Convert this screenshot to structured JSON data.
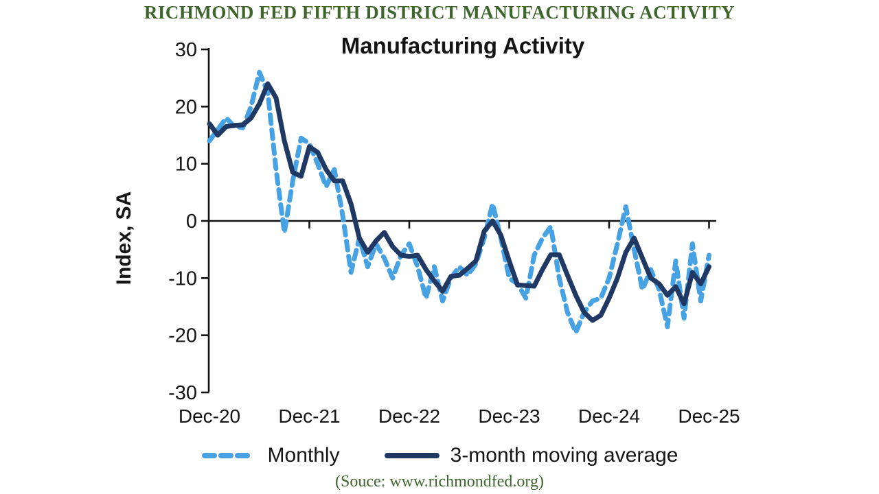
{
  "header": {
    "title": "RICHMOND FED FIFTH DISTRICT MANUFACTURING ACTIVITY",
    "color": "#3E652C"
  },
  "chart": {
    "title": "Manufacturing Activity",
    "y_axis_label": "Index, SA",
    "source": "(Souce: www.richmondfed.org)"
  },
  "legend": [
    {
      "label": "Monthly",
      "style": "dashed",
      "color": "#46A2E3"
    },
    {
      "label": "3-month moving average",
      "style": "solid",
      "color": "#1F3864"
    }
  ],
  "chart_data": {
    "type": "line",
    "title": "Manufacturing Activity",
    "xlabel": "",
    "ylabel": "Index, SA",
    "ylim": [
      -30,
      30
    ],
    "y_ticks": [
      30,
      20,
      10,
      0,
      -10,
      -20,
      -30
    ],
    "x_tick_labels": [
      "Dec-20",
      "Dec-21",
      "Dec-22",
      "Dec-23",
      "Dec-24",
      "Dec-25"
    ],
    "grid": false,
    "legend_position": "bottom",
    "axis_color": "#111111",
    "x": [
      "Dec-20",
      "Jan-21",
      "Feb-21",
      "Mar-21",
      "Apr-21",
      "May-21",
      "Jun-21",
      "Jul-21",
      "Aug-21",
      "Sep-21",
      "Oct-21",
      "Nov-21",
      "Dec-21",
      "Jan-22",
      "Feb-22",
      "Mar-22",
      "Apr-22",
      "May-22",
      "Jun-22",
      "Jul-22",
      "Aug-22",
      "Sep-22",
      "Oct-22",
      "Nov-22",
      "Dec-22",
      "Jan-23",
      "Feb-23",
      "Mar-23",
      "Apr-23",
      "May-23",
      "Jun-23",
      "Jul-23",
      "Aug-23",
      "Sep-23",
      "Oct-23",
      "Nov-23",
      "Dec-23",
      "Jan-24",
      "Feb-24",
      "Mar-24",
      "Apr-24",
      "May-24",
      "Jun-24",
      "Jul-24",
      "Aug-24",
      "Sep-24",
      "Oct-24",
      "Nov-24",
      "Dec-24",
      "Jan-25",
      "Feb-25",
      "Mar-25",
      "Apr-25",
      "May-25",
      "Jun-25",
      "Jul-25",
      "Aug-25",
      "Sep-25",
      "Oct-25",
      "Nov-25",
      "Dec-25"
    ],
    "series": [
      {
        "name": "Monthly",
        "color": "#46A2E3",
        "dash": true,
        "values": [
          14,
          16,
          18,
          16.5,
          16.3,
          20,
          26,
          22.5,
          9,
          -2,
          7,
          14.5,
          13.5,
          10,
          6,
          9,
          1,
          -9,
          -3,
          -8,
          -4,
          -6.5,
          -10,
          -6,
          -4,
          -8,
          -13.5,
          -8,
          -14,
          -10,
          -8,
          -9.5,
          -7.5,
          -3,
          3,
          -3,
          -10,
          -11,
          -13.5,
          -6,
          -3,
          -1,
          -10,
          -16,
          -19.5,
          -16,
          -14,
          -13.5,
          -10,
          -4,
          2.5,
          -5,
          -12,
          -8.5,
          -12,
          -18.5,
          -7,
          -17,
          -4,
          -14,
          -6
        ]
      },
      {
        "name": "3-month moving average",
        "color": "#1F3864",
        "dash": false,
        "values": [
          17,
          15,
          16.5,
          16.7,
          16.8,
          18,
          20.5,
          24,
          21.5,
          14,
          8.5,
          7.8,
          13,
          12,
          9,
          7,
          7,
          3,
          -3,
          -5.5,
          -3.5,
          -2,
          -4.5,
          -6,
          -6.2,
          -6,
          -8.5,
          -10.5,
          -12.3,
          -9.7,
          -9.5,
          -8.3,
          -7,
          -1.8,
          0,
          -2.5,
          -7,
          -11.2,
          -11.3,
          -11.4,
          -8.5,
          -5.9,
          -5.9,
          -9.5,
          -13,
          -16,
          -17.4,
          -16.5,
          -13.5,
          -10,
          -5.5,
          -3,
          -6.5,
          -10,
          -11,
          -13,
          -11.5,
          -14.5,
          -9,
          -11,
          -8
        ]
      }
    ]
  }
}
